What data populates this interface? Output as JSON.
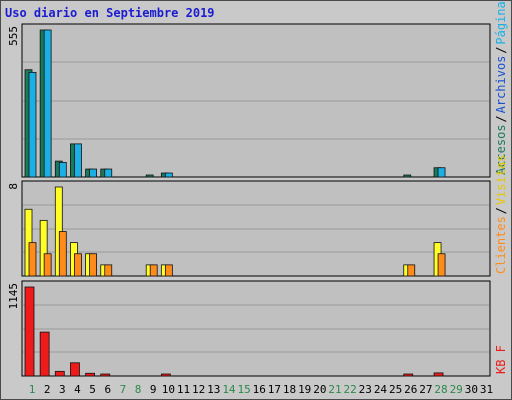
{
  "title": "Uso diario en Septiembre 2019",
  "chart_data": [
    {
      "type": "bar",
      "panel": "hits",
      "ymax_label": "555",
      "ylim": [
        0,
        555
      ],
      "categories": [
        "1",
        "2",
        "3",
        "4",
        "5",
        "6",
        "7",
        "8",
        "9",
        "10",
        "11",
        "12",
        "13",
        "14",
        "15",
        "16",
        "17",
        "18",
        "19",
        "20",
        "21",
        "22",
        "23",
        "24",
        "25",
        "26",
        "27",
        "28",
        "29",
        "30",
        "31"
      ],
      "series": [
        {
          "name": "Accesos",
          "color": "#1a7a5c",
          "values": [
            405,
            555,
            60,
            125,
            30,
            30,
            0,
            0,
            5,
            15,
            0,
            0,
            0,
            0,
            0,
            0,
            0,
            0,
            0,
            0,
            0,
            0,
            0,
            0,
            0,
            5,
            0,
            35,
            0,
            0,
            0
          ]
        },
        {
          "name": "Archivos",
          "color": "#1ab0e6",
          "values": [
            395,
            555,
            55,
            125,
            30,
            30,
            0,
            0,
            0,
            15,
            0,
            0,
            0,
            0,
            0,
            0,
            0,
            0,
            0,
            0,
            0,
            0,
            0,
            0,
            0,
            0,
            0,
            35,
            0,
            0,
            0
          ]
        }
      ],
      "legend_separator": "/",
      "legend_labels": [
        {
          "text": "Accesos",
          "color": "#1a7a5c"
        },
        {
          "text": "Archivos",
          "color": "#1b4fd1"
        },
        {
          "text": "Páginas",
          "color": "#1ab0e6"
        }
      ]
    },
    {
      "type": "bar",
      "panel": "visits",
      "ymax_label": "8",
      "ylim": [
        0,
        8
      ],
      "series": [
        {
          "name": "Visitas",
          "color": "#ffff26",
          "values": [
            6,
            5,
            8,
            3,
            2,
            1,
            0,
            0,
            1,
            1,
            0,
            0,
            0,
            0,
            0,
            0,
            0,
            0,
            0,
            0,
            0,
            0,
            0,
            0,
            0,
            1,
            0,
            3,
            0,
            0,
            0
          ]
        },
        {
          "name": "Clientes",
          "color": "#ff8c1a",
          "values": [
            3,
            2,
            4,
            2,
            2,
            1,
            0,
            0,
            1,
            1,
            0,
            0,
            0,
            0,
            0,
            0,
            0,
            0,
            0,
            0,
            0,
            0,
            0,
            0,
            0,
            1,
            0,
            2,
            0,
            0,
            0
          ]
        }
      ],
      "legend_labels": [
        {
          "text": "Clientes",
          "color": "#ff8c1a"
        },
        {
          "text": "Visitas",
          "color": "#e6c800"
        }
      ]
    },
    {
      "type": "bar",
      "panel": "kbytes",
      "ymax_label": "1145",
      "ylim": [
        0,
        1145
      ],
      "series": [
        {
          "name": "KB F",
          "color": "#ee1b1b",
          "values": [
            1145,
            565,
            60,
            170,
            35,
            25,
            0,
            0,
            0,
            15,
            0,
            0,
            0,
            0,
            0,
            0,
            0,
            0,
            0,
            0,
            0,
            0,
            0,
            0,
            0,
            10,
            0,
            40,
            0,
            0,
            0
          ]
        }
      ],
      "legend_labels": [
        {
          "text": "KB F",
          "color": "#ee1b1b"
        }
      ]
    }
  ],
  "x_axis": {
    "labels": [
      "1",
      "2",
      "3",
      "4",
      "5",
      "6",
      "7",
      "8",
      "9",
      "10",
      "11",
      "12",
      "13",
      "14",
      "15",
      "16",
      "17",
      "18",
      "19",
      "20",
      "21",
      "22",
      "23",
      "24",
      "25",
      "26",
      "27",
      "28",
      "29",
      "30",
      "31"
    ],
    "weekend": [
      1,
      7,
      8,
      14,
      15,
      21,
      22,
      28,
      29
    ],
    "weekday_color": "#000000",
    "weekend_color": "#2a8a4a"
  }
}
